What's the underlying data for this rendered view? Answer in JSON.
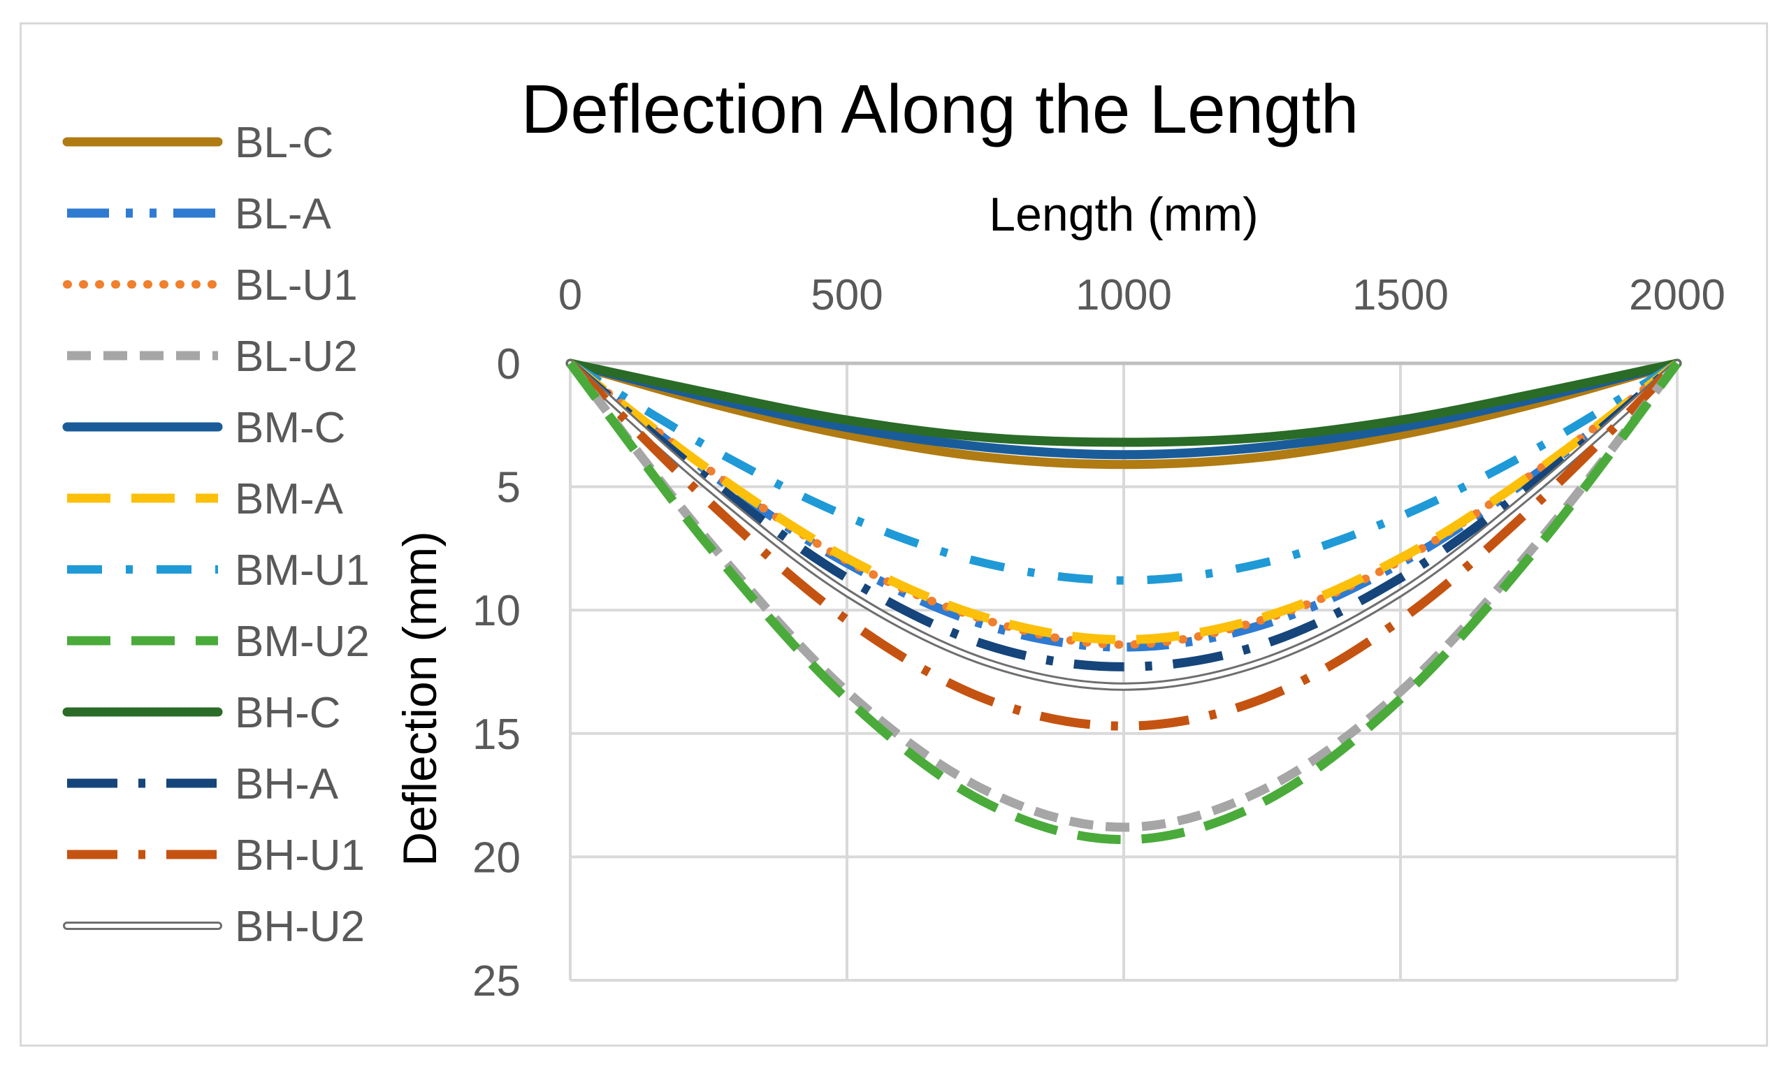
{
  "chart_data": {
    "type": "line",
    "title": "Deflection Along the Length",
    "xlabel": "Length (mm)",
    "ylabel": "Deflection (mm)",
    "xlim": [
      0,
      2000
    ],
    "ylim": [
      0,
      25
    ],
    "y_inverted": true,
    "x_axis_position": "top",
    "grid": true,
    "legend_position": "left",
    "x_ticks": [
      "0",
      "500",
      "1000",
      "1500",
      "2000"
    ],
    "y_ticks": [
      "0",
      "5",
      "10",
      "15",
      "20",
      "25"
    ],
    "series": [
      {
        "name": "BL-C",
        "color": "#b07b12",
        "style": "solid",
        "x": [
          0,
          250,
          500,
          750,
          1000,
          1250,
          1500,
          1750,
          2000
        ],
        "values": [
          0,
          1.6,
          2.9,
          3.8,
          4.1,
          3.8,
          2.9,
          1.6,
          0
        ]
      },
      {
        "name": "BL-A",
        "color": "#2e7bd1",
        "style": "dash-dot-dot",
        "x": [
          0,
          250,
          500,
          750,
          1000,
          1250,
          1500,
          1750,
          2000
        ],
        "values": [
          0,
          4.4,
          8.1,
          10.6,
          11.5,
          10.6,
          8.1,
          4.4,
          0
        ]
      },
      {
        "name": "BL-U1",
        "color": "#f07f2e",
        "style": "dotted",
        "x": [
          0,
          250,
          500,
          750,
          1000,
          1250,
          1500,
          1750,
          2000
        ],
        "values": [
          0,
          4.3,
          8.0,
          10.4,
          11.4,
          10.4,
          8.0,
          4.3,
          0
        ]
      },
      {
        "name": "BL-U2",
        "color": "#a6a6a6",
        "style": "dashed",
        "x": [
          0,
          250,
          500,
          750,
          1000,
          1250,
          1500,
          1750,
          2000
        ],
        "values": [
          0,
          7.2,
          13.3,
          17.3,
          18.8,
          17.3,
          13.3,
          7.2,
          0
        ]
      },
      {
        "name": "BM-C",
        "color": "#1a5c9a",
        "style": "solid",
        "x": [
          0,
          250,
          500,
          750,
          1000,
          1250,
          1500,
          1750,
          2000
        ],
        "values": [
          0,
          1.4,
          2.6,
          3.4,
          3.7,
          3.4,
          2.6,
          1.4,
          0
        ]
      },
      {
        "name": "BM-A",
        "color": "#fcc00a",
        "style": "long-dash",
        "x": [
          0,
          250,
          500,
          750,
          1000,
          1250,
          1500,
          1750,
          2000
        ],
        "values": [
          0,
          4.3,
          7.9,
          10.3,
          11.2,
          10.3,
          7.9,
          4.3,
          0
        ]
      },
      {
        "name": "BM-U1",
        "color": "#1f9ad6",
        "style": "dash-dot",
        "x": [
          0,
          250,
          500,
          750,
          1000,
          1250,
          1500,
          1750,
          2000
        ],
        "values": [
          0,
          3.4,
          6.2,
          8.1,
          8.8,
          8.1,
          6.2,
          3.4,
          0
        ]
      },
      {
        "name": "BM-U2",
        "color": "#4aab3b",
        "style": "long-dash",
        "x": [
          0,
          250,
          500,
          750,
          1000,
          1250,
          1500,
          1750,
          2000
        ],
        "values": [
          0,
          7.4,
          13.6,
          17.8,
          19.3,
          17.8,
          13.6,
          7.4,
          0
        ]
      },
      {
        "name": "BH-C",
        "color": "#2a6b27",
        "style": "solid",
        "x": [
          0,
          250,
          500,
          750,
          1000,
          1250,
          1500,
          1750,
          2000
        ],
        "values": [
          0,
          1.2,
          2.3,
          3.0,
          3.2,
          3.0,
          2.3,
          1.2,
          0
        ]
      },
      {
        "name": "BH-A",
        "color": "#15457a",
        "style": "long-dash-dot",
        "x": [
          0,
          250,
          500,
          750,
          1000,
          1250,
          1500,
          1750,
          2000
        ],
        "values": [
          0,
          4.7,
          8.7,
          11.4,
          12.3,
          11.4,
          8.7,
          4.7,
          0
        ]
      },
      {
        "name": "BH-U1",
        "color": "#c45311",
        "style": "long-dash-dot",
        "x": [
          0,
          250,
          500,
          750,
          1000,
          1250,
          1500,
          1750,
          2000
        ],
        "values": [
          0,
          5.6,
          10.4,
          13.6,
          14.7,
          13.6,
          10.4,
          5.6,
          0
        ]
      },
      {
        "name": "BH-U2",
        "color": "#6e6e6e",
        "style": "double",
        "x": [
          0,
          250,
          500,
          750,
          1000,
          1250,
          1500,
          1750,
          2000
        ],
        "values": [
          0,
          5.0,
          9.3,
          12.1,
          13.1,
          12.1,
          9.3,
          5.0,
          0
        ]
      }
    ]
  }
}
